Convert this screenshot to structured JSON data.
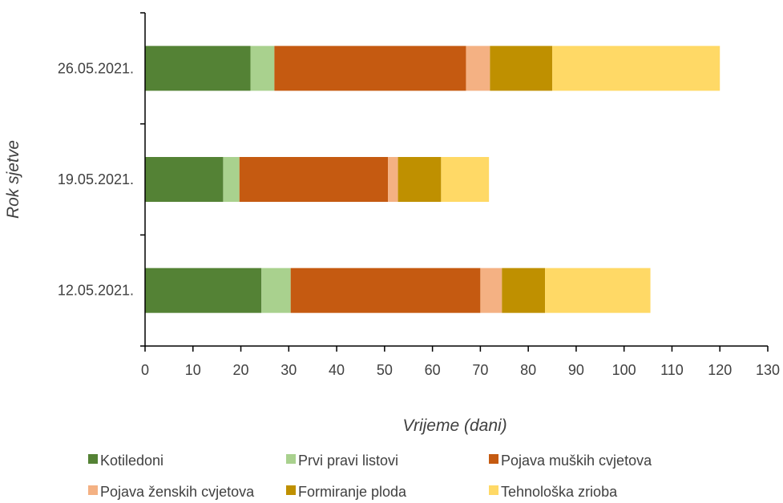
{
  "chart_data": {
    "type": "bar",
    "orientation": "horizontal",
    "stacked": true,
    "xlabel": "Vrijeme (dani)",
    "ylabel": "Rok sjetve",
    "xlim": [
      0,
      130
    ],
    "xticks": [
      0,
      10,
      20,
      30,
      40,
      50,
      60,
      70,
      80,
      90,
      100,
      110,
      120,
      130
    ],
    "categories": [
      "26.05.2021.",
      "19.05.2021.",
      "12.05.2021."
    ],
    "series": [
      {
        "name": "Kotiledoni",
        "color": "#548235",
        "values": [
          22,
          16.3,
          24.3
        ]
      },
      {
        "name": "Prvi pravi listovi",
        "color": "#a9d18e",
        "values": [
          5,
          3.4,
          6.1
        ]
      },
      {
        "name": "Pojava muških cvjetova",
        "color": "#c55a11",
        "values": [
          40,
          31,
          39.6
        ]
      },
      {
        "name": "Pojava ženskih cvjetova",
        "color": "#f4b183",
        "values": [
          5,
          2.1,
          4.5
        ]
      },
      {
        "name": "Formiranje ploda",
        "color": "#bf9000",
        "values": [
          13,
          9,
          9
        ]
      },
      {
        "name": "Tehnološka zrioba",
        "color": "#ffd966",
        "values": [
          35,
          10,
          22
        ]
      }
    ],
    "grid": false,
    "legend_position": "bottom"
  }
}
